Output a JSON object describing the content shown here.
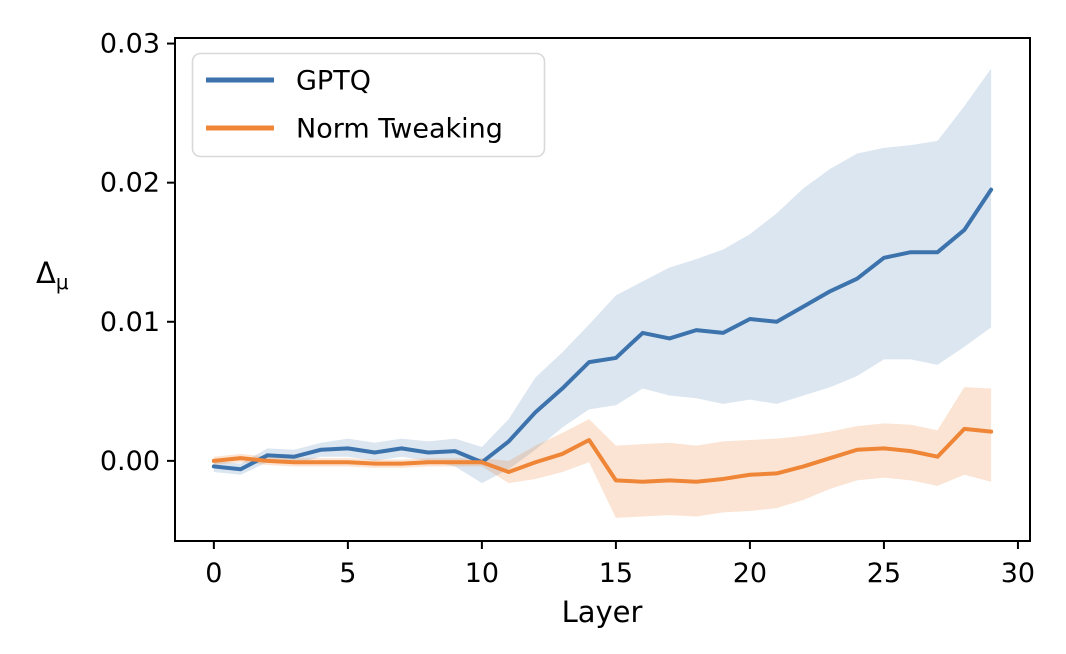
{
  "figure": {
    "background": "#ffffff",
    "ylabel_main": "Δ",
    "ylabel_sub": "μ"
  },
  "legend": {
    "position": "upper left",
    "items": [
      {
        "label": "GPTQ",
        "color": "#3d73ac"
      },
      {
        "label": "Norm Tweaking",
        "color": "#ef8536"
      }
    ]
  },
  "chart_data": {
    "type": "line",
    "title": "",
    "xlabel": "Layer",
    "ylabel": "Δ_μ",
    "grid": false,
    "legend_position": "upper left",
    "xlim": [
      -1.45,
      30.45
    ],
    "ylim": [
      -0.00576,
      0.0304
    ],
    "xticks": [
      0,
      5,
      10,
      15,
      20,
      25,
      30
    ],
    "xtick_labels": [
      "0",
      "5",
      "10",
      "15",
      "20",
      "25",
      "30"
    ],
    "yticks": [
      0.0,
      0.01,
      0.02,
      0.03
    ],
    "ytick_labels": [
      "0.00",
      "0.01",
      "0.02",
      "0.03"
    ],
    "x": [
      0,
      1,
      2,
      3,
      4,
      5,
      6,
      7,
      8,
      9,
      10,
      11,
      12,
      13,
      14,
      15,
      16,
      17,
      18,
      19,
      20,
      21,
      22,
      23,
      24,
      25,
      26,
      27,
      28,
      29
    ],
    "series": [
      {
        "name": "GPTQ",
        "color": "#3d73ac",
        "band_color": "#3d73ac",
        "band_alpha": 0.18,
        "values": [
          -0.0004,
          -0.0006,
          0.0004,
          0.0003,
          0.0008,
          0.0009,
          0.0006,
          0.0009,
          0.0006,
          0.0007,
          -0.0001,
          0.0014,
          0.0035,
          0.0052,
          0.0071,
          0.0074,
          0.0092,
          0.0088,
          0.0094,
          0.0092,
          0.0102,
          0.01,
          0.0111,
          0.0122,
          0.0131,
          0.0146,
          0.015,
          0.015,
          0.0166,
          0.0195
        ],
        "band_upper": [
          0.0,
          -0.0002,
          0.0009,
          0.0008,
          0.0013,
          0.0016,
          0.0013,
          0.0016,
          0.0014,
          0.0016,
          0.001,
          0.003,
          0.006,
          0.0078,
          0.0098,
          0.0119,
          0.0129,
          0.0139,
          0.0145,
          0.0152,
          0.0163,
          0.0178,
          0.0196,
          0.021,
          0.0221,
          0.0225,
          0.0227,
          0.023,
          0.0255,
          0.0282
        ],
        "band_lower": [
          -0.0008,
          -0.001,
          -0.0001,
          -0.0002,
          0.0003,
          0.0003,
          0.0,
          0.0003,
          0.0,
          -0.0004,
          -0.0016,
          -0.0006,
          0.0008,
          0.0024,
          0.0037,
          0.004,
          0.0052,
          0.0047,
          0.0045,
          0.0041,
          0.0044,
          0.0041,
          0.0047,
          0.0053,
          0.0061,
          0.0073,
          0.0073,
          0.0069,
          0.0082,
          0.0096
        ]
      },
      {
        "name": "Norm Tweaking",
        "color": "#ef8536",
        "band_color": "#ef8536",
        "band_alpha": 0.22,
        "values": [
          0.0,
          0.0002,
          0.0,
          -0.0001,
          -0.0001,
          -0.0001,
          -0.0002,
          -0.0002,
          -0.0001,
          -0.0001,
          -0.0001,
          -0.0008,
          -0.0001,
          0.0005,
          0.0015,
          -0.0014,
          -0.0015,
          -0.0014,
          -0.0015,
          -0.0013,
          -0.001,
          -0.0009,
          -0.0004,
          0.0002,
          0.0008,
          0.0009,
          0.0007,
          0.0003,
          0.0023,
          0.0021
        ],
        "band_upper": [
          0.0003,
          0.0005,
          0.0003,
          0.0002,
          0.0002,
          0.0002,
          0.0001,
          0.0001,
          0.0002,
          0.0002,
          0.0002,
          0.0,
          0.0011,
          0.002,
          0.003,
          0.0011,
          0.0012,
          0.0013,
          0.0011,
          0.0014,
          0.0015,
          0.0016,
          0.0018,
          0.0021,
          0.0025,
          0.0027,
          0.0026,
          0.0022,
          0.0053,
          0.0052
        ],
        "band_lower": [
          -0.0003,
          -0.0001,
          -0.0003,
          -0.0004,
          -0.0004,
          -0.0004,
          -0.0005,
          -0.0005,
          -0.0004,
          -0.0004,
          -0.0004,
          -0.0016,
          -0.0013,
          -0.0008,
          -0.0001,
          -0.0041,
          -0.004,
          -0.0039,
          -0.004,
          -0.0037,
          -0.0036,
          -0.0034,
          -0.0028,
          -0.002,
          -0.0014,
          -0.0012,
          -0.0014,
          -0.0018,
          -0.001,
          -0.0015
        ]
      }
    ]
  }
}
